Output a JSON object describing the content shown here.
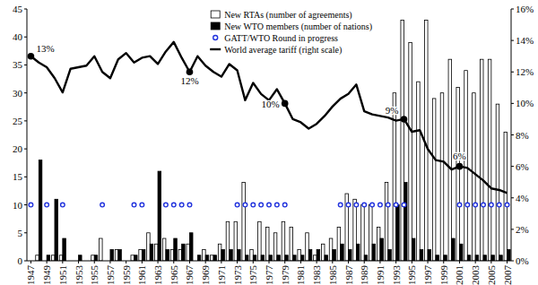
{
  "chart_data": {
    "type": "bar",
    "x": [
      1947,
      1948,
      1949,
      1950,
      1951,
      1952,
      1953,
      1954,
      1955,
      1956,
      1957,
      1958,
      1959,
      1960,
      1961,
      1962,
      1963,
      1964,
      1965,
      1966,
      1967,
      1968,
      1969,
      1970,
      1971,
      1972,
      1973,
      1974,
      1975,
      1976,
      1977,
      1978,
      1979,
      1980,
      1981,
      1982,
      1983,
      1984,
      1985,
      1986,
      1987,
      1988,
      1989,
      1990,
      1991,
      1992,
      1993,
      1994,
      1995,
      1996,
      1997,
      1998,
      1999,
      2000,
      2001,
      2002,
      2003,
      2004,
      2005,
      2006,
      2007
    ],
    "series": [
      {
        "name": "New RTAs (number of agreements)",
        "type": "bar",
        "color": "#ffffff",
        "values": [
          0,
          1,
          0,
          1,
          1,
          0,
          0,
          0,
          1,
          4,
          0,
          2,
          0,
          1,
          2,
          5,
          3,
          4,
          2,
          2,
          3,
          0,
          2,
          1,
          3,
          7,
          7,
          14,
          2,
          7,
          6,
          5,
          7,
          6,
          2,
          5,
          1,
          3,
          4,
          6,
          12,
          11,
          10,
          10,
          6,
          14,
          30,
          43,
          39,
          32,
          43,
          29,
          30,
          36,
          31,
          34,
          30,
          36,
          36,
          28,
          23
        ]
      },
      {
        "name": "New WTO members (number of nations)",
        "type": "bar",
        "color": "#000000",
        "values": [
          0,
          18,
          1,
          11,
          4,
          0,
          1,
          0,
          1,
          0,
          2,
          2,
          0,
          1,
          2,
          3,
          16,
          2,
          4,
          3,
          5,
          1,
          1,
          1,
          2,
          2,
          2,
          1,
          1,
          1,
          1,
          1,
          1,
          1,
          1,
          2,
          2,
          1,
          2,
          3,
          2,
          3,
          1,
          3,
          4,
          2,
          10,
          14,
          4,
          2,
          2,
          1,
          1,
          4,
          3,
          1,
          1,
          1,
          1,
          1,
          2
        ]
      },
      {
        "name": "GATT/WTO Round in progress",
        "type": "scatter",
        "color": "#2233dd",
        "marker": "circle",
        "x": [
          1947,
          1949,
          1951,
          1956,
          1960,
          1961,
          1964,
          1965,
          1966,
          1967,
          1973,
          1974,
          1975,
          1976,
          1977,
          1978,
          1979,
          1986,
          1987,
          1988,
          1989,
          1990,
          1991,
          1992,
          1993,
          1994,
          2001,
          2002,
          2003,
          2004,
          2005,
          2006,
          2007
        ],
        "values": [
          10,
          10,
          10,
          10,
          10,
          10,
          10,
          10,
          10,
          10,
          10,
          10,
          10,
          10,
          10,
          10,
          10,
          10,
          10,
          10,
          10,
          10,
          10,
          10,
          10,
          10,
          10,
          10,
          10,
          10,
          10,
          10,
          10
        ]
      },
      {
        "name": "World average tariff (right scale)",
        "type": "line",
        "color": "#000000",
        "axis": "y2",
        "values": [
          13,
          12.6,
          12.3,
          11.6,
          10.7,
          12.2,
          12.3,
          12.4,
          13.0,
          12.0,
          11.6,
          12.8,
          13.2,
          12.6,
          12.9,
          13.0,
          12.5,
          13.3,
          13.9,
          12.9,
          12,
          13,
          12.4,
          12,
          11.7,
          12.5,
          12.1,
          10.2,
          11.3,
          10.6,
          10.2,
          10.9,
          10,
          9,
          8.8,
          8.4,
          8.7,
          9.2,
          9.8,
          10.3,
          10.6,
          11.2,
          9.5,
          9.3,
          9.2,
          9.1,
          8.9,
          9,
          8.2,
          8.3,
          7.1,
          6.4,
          6.3,
          5.8,
          6,
          5.9,
          5.5,
          5.1,
          4.6,
          4.5,
          4.3
        ]
      }
    ],
    "xlim": [
      1946.5,
      2007.5
    ],
    "xticks": [
      1947,
      1949,
      1951,
      1953,
      1955,
      1957,
      1959,
      1961,
      1963,
      1965,
      1967,
      1969,
      1971,
      1973,
      1975,
      1977,
      1979,
      1981,
      1983,
      1985,
      1987,
      1989,
      1991,
      1993,
      1995,
      1997,
      1999,
      2001,
      2003,
      2005,
      2007
    ],
    "ylim": [
      0,
      45
    ],
    "yticks": [
      0,
      5,
      10,
      15,
      20,
      25,
      30,
      35,
      40,
      45
    ],
    "y2lim": [
      0,
      16
    ],
    "y2ticks": [
      {
        "value": 0,
        "label": "0%"
      },
      {
        "value": 2,
        "label": "2%"
      },
      {
        "value": 4,
        "label": "4%"
      },
      {
        "value": 6,
        "label": "6%"
      },
      {
        "value": 8,
        "label": "8%"
      },
      {
        "value": 10,
        "label": "10%"
      },
      {
        "value": 12,
        "label": "12%"
      },
      {
        "value": 14,
        "label": "14%"
      },
      {
        "value": 16,
        "label": "16%"
      }
    ],
    "annotations": [
      {
        "x": 1947,
        "y": 13,
        "label": "13%"
      },
      {
        "x": 1967,
        "y": 12,
        "label": "12%"
      },
      {
        "x": 1979,
        "y": 10,
        "label": "10%"
      },
      {
        "x": 1994,
        "y": 9,
        "label": "9%"
      },
      {
        "x": 2001,
        "y": 6,
        "label": "6%"
      }
    ],
    "legend": "upper center"
  }
}
